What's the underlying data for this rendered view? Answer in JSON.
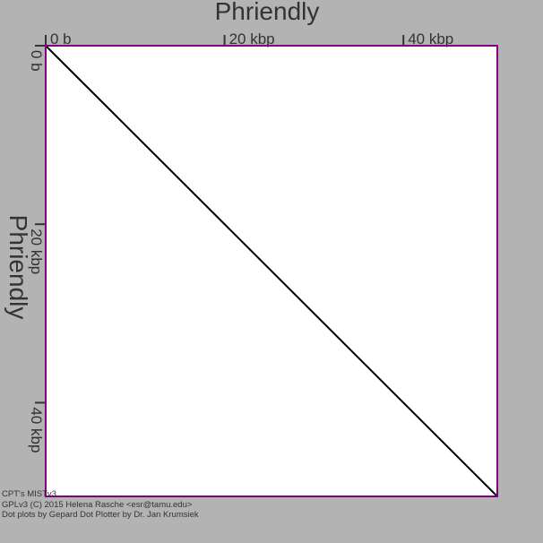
{
  "chart_data": {
    "type": "line",
    "title_top": "Phriendly",
    "title_left": "Phriendly",
    "x_ticks": [
      {
        "value": 0,
        "label": "0 b"
      },
      {
        "value": 20000,
        "label": "20 kbp"
      },
      {
        "value": 40000,
        "label": "40 kbp"
      }
    ],
    "y_ticks": [
      {
        "value": 0,
        "label": "0 b"
      },
      {
        "value": 20000,
        "label": "20 kbp"
      },
      {
        "value": 40000,
        "label": "40 kbp"
      }
    ],
    "xlim": [
      0,
      50500
    ],
    "ylim": [
      0,
      50500
    ],
    "series": [
      {
        "x": [
          0,
          50500
        ],
        "y": [
          0,
          50500
        ]
      }
    ],
    "colors": {
      "background": "#b3b3b3",
      "plot_area": "#ffffff",
      "frame": "#800080",
      "line": "#000000",
      "text": "#333333"
    }
  },
  "footer": {
    "line1": "CPT's MISTv3",
    "line2": "GPLv3 (C) 2015 Helena Rasche <esr@tamu.edu>",
    "line3": "Dot plots by Gepard Dot Plotter by Dr. Jan Krumsiek"
  }
}
